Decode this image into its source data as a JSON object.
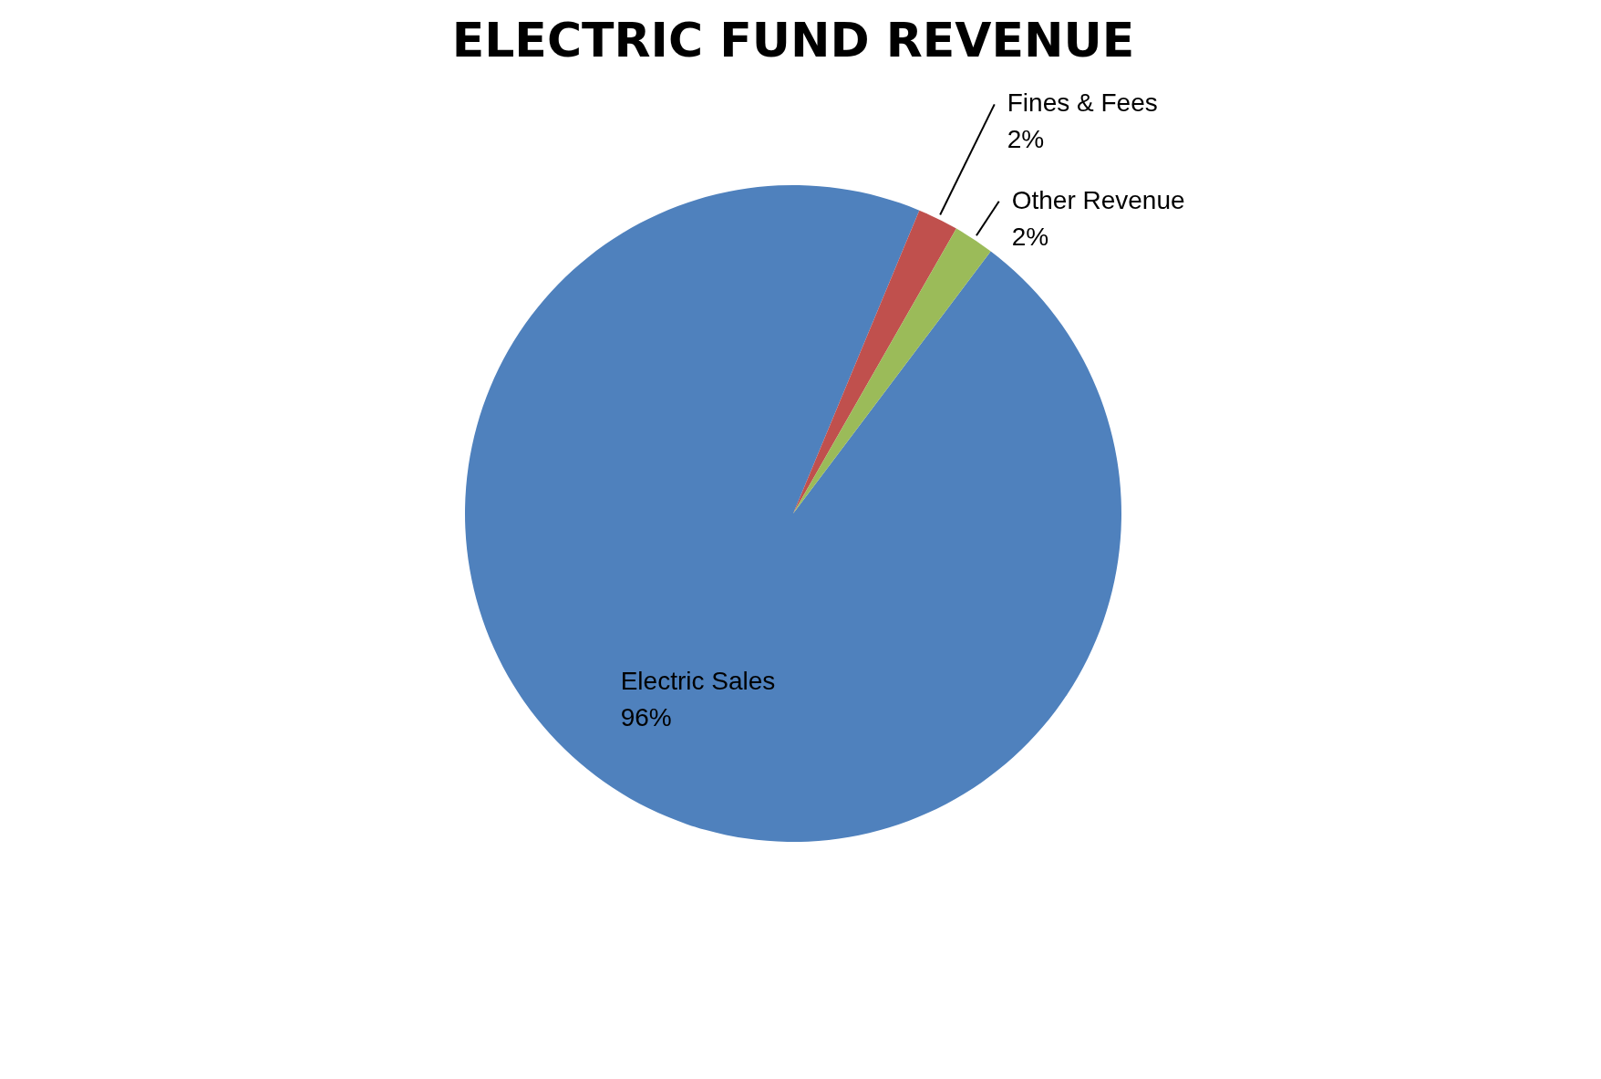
{
  "chart_data": {
    "type": "pie",
    "title": "ELECTRIC FUND REVENUE",
    "categories": [
      "Electric Sales",
      "Fines & Fees",
      "Other Revenue"
    ],
    "values": [
      96,
      2,
      2
    ],
    "value_labels": [
      "96%",
      "2%",
      "2%"
    ],
    "colors": [
      "#4f81bd",
      "#c0504d",
      "#9bbb59"
    ],
    "legend": false
  }
}
